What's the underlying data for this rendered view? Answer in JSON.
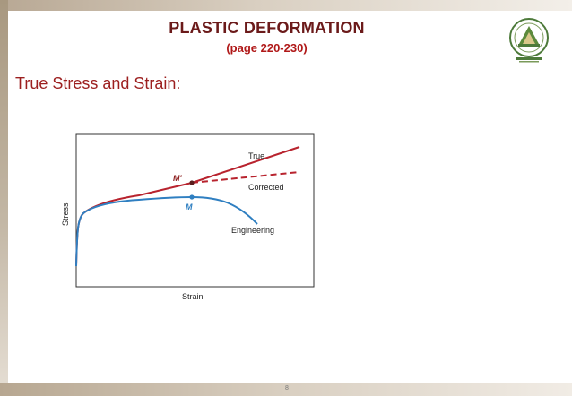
{
  "slide": {
    "title": "PLASTIC DEFORMATION",
    "subtitle": "(page 220-230)",
    "heading": "True Stress and Strain:",
    "page_number": "8",
    "logo": "college-emblem-icon"
  },
  "figure": {
    "x_label": "Strain",
    "y_label": "Stress",
    "curve_labels": {
      "true": "True",
      "corrected": "Corrected",
      "engineering": "Engineering"
    },
    "point_labels": {
      "m_prime": "M′",
      "m": "M"
    },
    "colors": {
      "true": "#b8232e",
      "engineering": "#2f7fc1",
      "axes": "#333333"
    }
  }
}
